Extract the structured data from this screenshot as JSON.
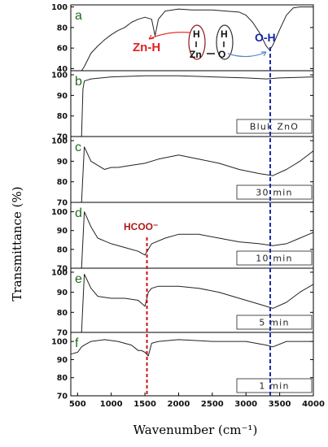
{
  "chart_data": {
    "type": "line",
    "ylabel": "Transmittance (%)",
    "xlabel": "Wavenumber (cm⁻¹)",
    "xlim": [
      400,
      4000
    ],
    "x_ticks": [
      "500",
      "1000",
      "1500",
      "2000",
      "2500",
      "3000",
      "3500",
      "4000"
    ],
    "annotations": {
      "zn_h": "Zn-H",
      "o_h": "O-H",
      "hcoo": "HCOO⁻",
      "hcoo_position": 1530,
      "oh_position": 3360,
      "chem_h1": "H",
      "chem_zn": "Zn",
      "chem_h2": "H",
      "chem_o": "O"
    },
    "panels": [
      {
        "letter": "a",
        "label": "",
        "ylim": [
          38,
          102
        ],
        "yticks": [
          "100",
          "80",
          "60",
          "40"
        ],
        "x": [
          560,
          600,
          700,
          800,
          900,
          1000,
          1100,
          1200,
          1300,
          1400,
          1500,
          1600,
          1650,
          1700,
          1800,
          2000,
          2200,
          2500,
          2700,
          2900,
          3000,
          3100,
          3200,
          3300,
          3350,
          3400,
          3500,
          3600,
          3700,
          3800,
          4000
        ],
        "y": [
          38,
          42,
          55,
          62,
          68,
          73,
          77,
          80,
          85,
          88,
          90,
          88,
          72,
          88,
          96,
          98,
          97,
          97,
          96,
          95,
          92,
          85,
          75,
          62,
          58,
          63,
          78,
          92,
          99,
          100,
          100
        ]
      },
      {
        "letter": "b",
        "label": "Bluk ZnO",
        "ylim": [
          70,
          102
        ],
        "yticks": [
          "100",
          "90",
          "80",
          "70"
        ],
        "x": [
          560,
          580,
          600,
          700,
          1000,
          1500,
          2000,
          2500,
          3000,
          3300,
          3500,
          4000
        ],
        "y": [
          70,
          93,
          97,
          98,
          99,
          99.5,
          99.5,
          99,
          98.5,
          98,
          98.5,
          99
        ]
      },
      {
        "letter": "c",
        "label": "30 min",
        "ylim": [
          70,
          102
        ],
        "yticks": [
          "100",
          "90",
          "80",
          "70"
        ],
        "x": [
          560,
          600,
          700,
          800,
          900,
          1000,
          1100,
          1300,
          1500,
          1700,
          2000,
          2300,
          2600,
          2900,
          3200,
          3400,
          3600,
          3800,
          4000
        ],
        "y": [
          70,
          97,
          90,
          88,
          86,
          87,
          87,
          88,
          89,
          91,
          93,
          91,
          89,
          86,
          84,
          83,
          86,
          90,
          95
        ]
      },
      {
        "letter": "d",
        "label": "10 min",
        "ylim": [
          70,
          105
        ],
        "yticks": [
          "100",
          "90",
          "80",
          "70"
        ],
        "x": [
          560,
          600,
          700,
          800,
          1000,
          1200,
          1400,
          1500,
          1550,
          1600,
          1800,
          2000,
          2300,
          2600,
          2900,
          3200,
          3400,
          3600,
          3800,
          4000
        ],
        "y": [
          70,
          100,
          92,
          86,
          83,
          81,
          79,
          77,
          80,
          83,
          86,
          88,
          88,
          86,
          84,
          83,
          82,
          83,
          86,
          89
        ]
      },
      {
        "letter": "e",
        "label": "5 min",
        "ylim": [
          70,
          102
        ],
        "yticks": [
          "100",
          "90",
          "80",
          "70"
        ],
        "x": [
          560,
          600,
          700,
          800,
          1000,
          1200,
          1400,
          1500,
          1550,
          1600,
          1700,
          2000,
          2300,
          2600,
          2900,
          3200,
          3400,
          3600,
          3800,
          4000
        ],
        "y": [
          70,
          99,
          92,
          88,
          87,
          87,
          86,
          83,
          90,
          92,
          93,
          93,
          92,
          90,
          87,
          84,
          82,
          85,
          90,
          94
        ]
      },
      {
        "letter": "f",
        "label": "1 min",
        "ylim": [
          70,
          105
        ],
        "yticks": [
          "100",
          "90",
          "80",
          "70"
        ],
        "x": [
          400,
          500,
          560,
          600,
          700,
          900,
          1100,
          1300,
          1400,
          1450,
          1500,
          1550,
          1600,
          1700,
          2000,
          2500,
          3000,
          3300,
          3400,
          3600,
          4000
        ],
        "y": [
          93,
          94,
          97,
          98,
          100,
          101,
          100,
          98,
          95,
          95,
          94,
          92,
          99,
          100,
          101,
          100,
          100,
          98,
          97,
          100,
          100
        ]
      }
    ]
  }
}
